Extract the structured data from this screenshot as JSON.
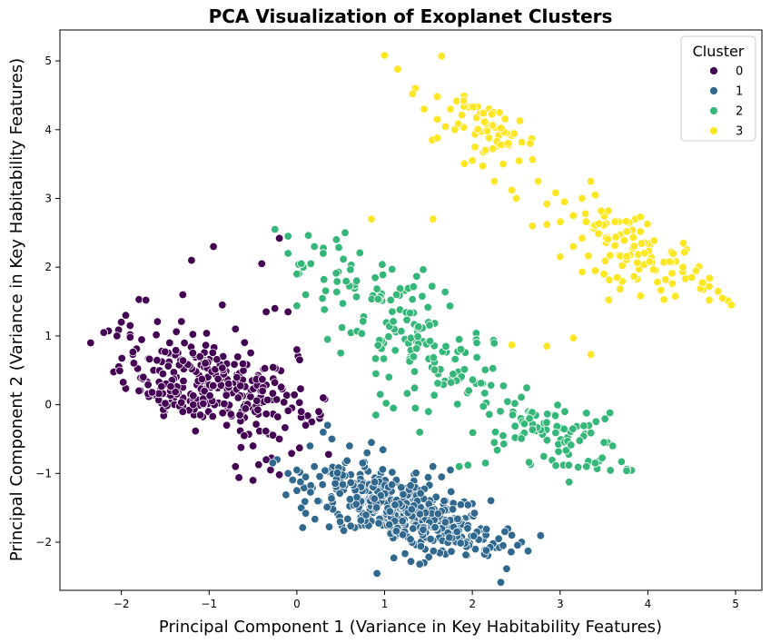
{
  "chart_data": {
    "type": "scatter",
    "title": "PCA Visualization of Exoplanet Clusters",
    "xlabel": "Principal Component 1 (Variance in Key Habitability Features)",
    "ylabel": "Principal Component 2 (Variance in Key Habitability Features)",
    "xlim": [
      -2.7,
      5.3
    ],
    "ylim": [
      -2.7,
      5.45
    ],
    "xticks": [
      "−2",
      "−1",
      "0",
      "1",
      "2",
      "3",
      "4",
      "5"
    ],
    "xtick_values": [
      -2,
      -1,
      0,
      1,
      2,
      3,
      4,
      5
    ],
    "yticks": [
      "−2",
      "−1",
      "0",
      "1",
      "2",
      "3",
      "4",
      "5"
    ],
    "ytick_values": [
      -2,
      -1,
      0,
      1,
      2,
      3,
      4,
      5
    ],
    "grid": false,
    "legend": {
      "title": "Cluster",
      "placement": "top-right",
      "entries": [
        "0",
        "1",
        "2",
        "3"
      ]
    },
    "series": [
      {
        "name": "0",
        "color": "#440154",
        "clusters": [
          {
            "cx": -1.0,
            "cy": 0.35,
            "sx": 0.5,
            "sy": 0.3,
            "n": 220
          },
          {
            "cx": -1.4,
            "cy": 0.1,
            "sx": 0.2,
            "sy": 0.1,
            "n": 40
          },
          {
            "cx": -0.3,
            "cy": 0.0,
            "sx": 0.35,
            "sy": 0.35,
            "n": 40
          }
        ],
        "points": [
          [
            -2.35,
            0.9
          ],
          [
            -2.2,
            1.05
          ],
          [
            -2.05,
            1.0
          ],
          [
            -2.0,
            1.2
          ],
          [
            -1.95,
            1.3
          ],
          [
            -1.9,
            1.15
          ],
          [
            -1.9,
            0.98
          ],
          [
            -1.8,
            1.53
          ],
          [
            -1.72,
            1.52
          ],
          [
            -1.3,
            1.6
          ],
          [
            -1.2,
            2.1
          ],
          [
            -0.95,
            2.3
          ],
          [
            -0.7,
            1.1
          ],
          [
            -0.85,
            1.45
          ],
          [
            -0.4,
            2.05
          ],
          [
            -0.2,
            2.42
          ],
          [
            -0.35,
            1.35
          ],
          [
            -0.25,
            1.4
          ],
          [
            -0.1,
            1.35
          ],
          [
            0.0,
            0.8
          ],
          [
            -0.6,
            -0.45
          ],
          [
            -0.5,
            -0.6
          ],
          [
            -0.35,
            -0.8
          ],
          [
            -0.2,
            -0.5
          ],
          [
            -0.3,
            -0.95
          ],
          [
            -0.7,
            -0.9
          ],
          [
            -0.5,
            -1.1
          ],
          [
            -0.2,
            -1.02
          ],
          [
            0.1,
            -0.3
          ],
          [
            0.25,
            -0.1
          ],
          [
            0.3,
            0.1
          ],
          [
            0.05,
            -0.1
          ],
          [
            -1.5,
            0.02
          ],
          [
            -1.75,
            0.4
          ],
          [
            -1.65,
            0.18
          ],
          [
            -1.45,
            0.9
          ],
          [
            -1.1,
            -0.15
          ],
          [
            -1.3,
            -0.1
          ],
          [
            -0.8,
            -0.3
          ],
          [
            -0.65,
            -0.15
          ]
        ]
      },
      {
        "name": "1",
        "color": "#31688e",
        "clusters": [
          {
            "cx": 1.2,
            "cy": -1.55,
            "sx": 0.5,
            "sy": 0.25,
            "n": 360
          },
          {
            "cx": 0.6,
            "cy": -1.2,
            "sx": 0.3,
            "sy": 0.2,
            "n": 40
          },
          {
            "cx": 1.8,
            "cy": -1.85,
            "sx": 0.35,
            "sy": 0.15,
            "n": 60
          }
        ],
        "points": [
          [
            -0.1,
            -1.0
          ],
          [
            0.0,
            -0.95
          ],
          [
            0.1,
            -1.05
          ],
          [
            0.2,
            -0.9
          ],
          [
            0.15,
            -0.6
          ],
          [
            0.3,
            -0.4
          ],
          [
            0.4,
            -0.5
          ],
          [
            0.35,
            -0.3
          ],
          [
            0.6,
            -0.6
          ],
          [
            0.8,
            -0.7
          ],
          [
            0.85,
            -0.55
          ],
          [
            0.75,
            -0.85
          ],
          [
            0.05,
            -1.5
          ],
          [
            0.1,
            -1.58
          ],
          [
            0.0,
            -1.25
          ],
          [
            1.3,
            -2.28
          ],
          [
            1.45,
            -2.3
          ],
          [
            1.4,
            -2.32
          ],
          [
            2.3,
            -1.95
          ],
          [
            2.45,
            -1.9
          ],
          [
            2.35,
            -2.05
          ],
          [
            1.65,
            -1.05
          ],
          [
            1.75,
            -0.95
          ],
          [
            1.55,
            -0.9
          ]
        ]
      },
      {
        "name": "2",
        "color": "#35b779",
        "clusters": [
          {
            "cx": 0.8,
            "cy": 1.65,
            "sx": 0.4,
            "sy": 0.3,
            "n": 70
          },
          {
            "cx": 1.75,
            "cy": 0.5,
            "sx": 0.35,
            "sy": 0.3,
            "n": 55
          },
          {
            "cx": 2.9,
            "cy": -0.4,
            "sx": 0.4,
            "sy": 0.25,
            "n": 90
          },
          {
            "cx": 1.2,
            "cy": 0.9,
            "sx": 0.4,
            "sy": 0.3,
            "n": 40
          }
        ],
        "points": [
          [
            -0.25,
            2.55
          ],
          [
            -0.1,
            2.45
          ],
          [
            -0.1,
            2.2
          ],
          [
            0.0,
            1.9
          ],
          [
            0.05,
            2.05
          ],
          [
            0.1,
            1.6
          ],
          [
            0.2,
            2.3
          ],
          [
            0.3,
            2.2
          ],
          [
            0.45,
            2.4
          ],
          [
            0.55,
            2.5
          ],
          [
            0.35,
            0.95
          ],
          [
            0.5,
            0.75
          ],
          [
            0.9,
            0.45
          ],
          [
            0.95,
            0.15
          ],
          [
            0.9,
            -0.15
          ],
          [
            1.05,
            0.4
          ],
          [
            1.1,
            -0.05
          ],
          [
            1.4,
            -0.4
          ],
          [
            1.35,
            -0.05
          ],
          [
            1.5,
            -0.1
          ],
          [
            1.85,
            -0.9
          ],
          [
            1.95,
            -0.88
          ],
          [
            2.15,
            -0.85
          ],
          [
            2.25,
            -0.55
          ],
          [
            2.35,
            -0.45
          ],
          [
            3.1,
            -0.88
          ],
          [
            3.3,
            -0.9
          ],
          [
            3.4,
            -0.85
          ],
          [
            3.7,
            -0.83
          ],
          [
            3.5,
            -0.55
          ],
          [
            3.6,
            -0.6
          ],
          [
            2.05,
            0.9
          ],
          [
            1.85,
            0.95
          ]
        ]
      },
      {
        "name": "3",
        "color": "#fde725",
        "clusters": [
          {
            "cx": 2.25,
            "cy": 3.95,
            "sx": 0.25,
            "sy": 0.2,
            "n": 55
          },
          {
            "cx": 4.0,
            "cy": 2.1,
            "sx": 0.35,
            "sy": 0.25,
            "n": 70
          },
          {
            "cx": 3.6,
            "cy": 2.5,
            "sx": 0.25,
            "sy": 0.2,
            "n": 25
          }
        ],
        "points": [
          [
            1.0,
            5.08
          ],
          [
            1.15,
            4.88
          ],
          [
            1.65,
            5.07
          ],
          [
            1.35,
            4.6
          ],
          [
            1.32,
            4.52
          ],
          [
            1.45,
            4.3
          ],
          [
            1.6,
            4.48
          ],
          [
            1.75,
            4.3
          ],
          [
            1.6,
            4.15
          ],
          [
            1.8,
            4.0
          ],
          [
            1.9,
            4.42
          ],
          [
            1.6,
            3.88
          ],
          [
            0.85,
            2.7
          ],
          [
            1.55,
            2.7
          ],
          [
            2.25,
            3.25
          ],
          [
            2.45,
            3.12
          ],
          [
            2.5,
            3.0
          ],
          [
            2.75,
            3.25
          ],
          [
            2.95,
            3.08
          ],
          [
            2.85,
            2.92
          ],
          [
            2.85,
            2.62
          ],
          [
            3.05,
            2.95
          ],
          [
            3.15,
            2.75
          ],
          [
            3.25,
            3.0
          ],
          [
            3.35,
            3.25
          ],
          [
            3.4,
            3.05
          ],
          [
            3.55,
            2.82
          ],
          [
            3.0,
            2.15
          ],
          [
            3.15,
            2.3
          ],
          [
            3.25,
            2.42
          ],
          [
            4.7,
            1.72
          ],
          [
            4.8,
            1.65
          ],
          [
            4.85,
            1.55
          ],
          [
            4.7,
            1.52
          ],
          [
            4.95,
            1.45
          ],
          [
            2.45,
            0.87
          ],
          [
            2.85,
            0.85
          ],
          [
            3.15,
            0.97
          ],
          [
            3.35,
            0.73
          ],
          [
            2.15,
            3.7
          ],
          [
            2.35,
            3.5
          ],
          [
            2.0,
            3.55
          ],
          [
            3.5,
            1.9
          ],
          [
            3.65,
            1.85
          ],
          [
            3.4,
            1.95
          ],
          [
            4.5,
            1.85
          ],
          [
            4.55,
            1.95
          ],
          [
            4.4,
            2.0
          ],
          [
            4.25,
            2.08
          ]
        ]
      }
    ]
  }
}
